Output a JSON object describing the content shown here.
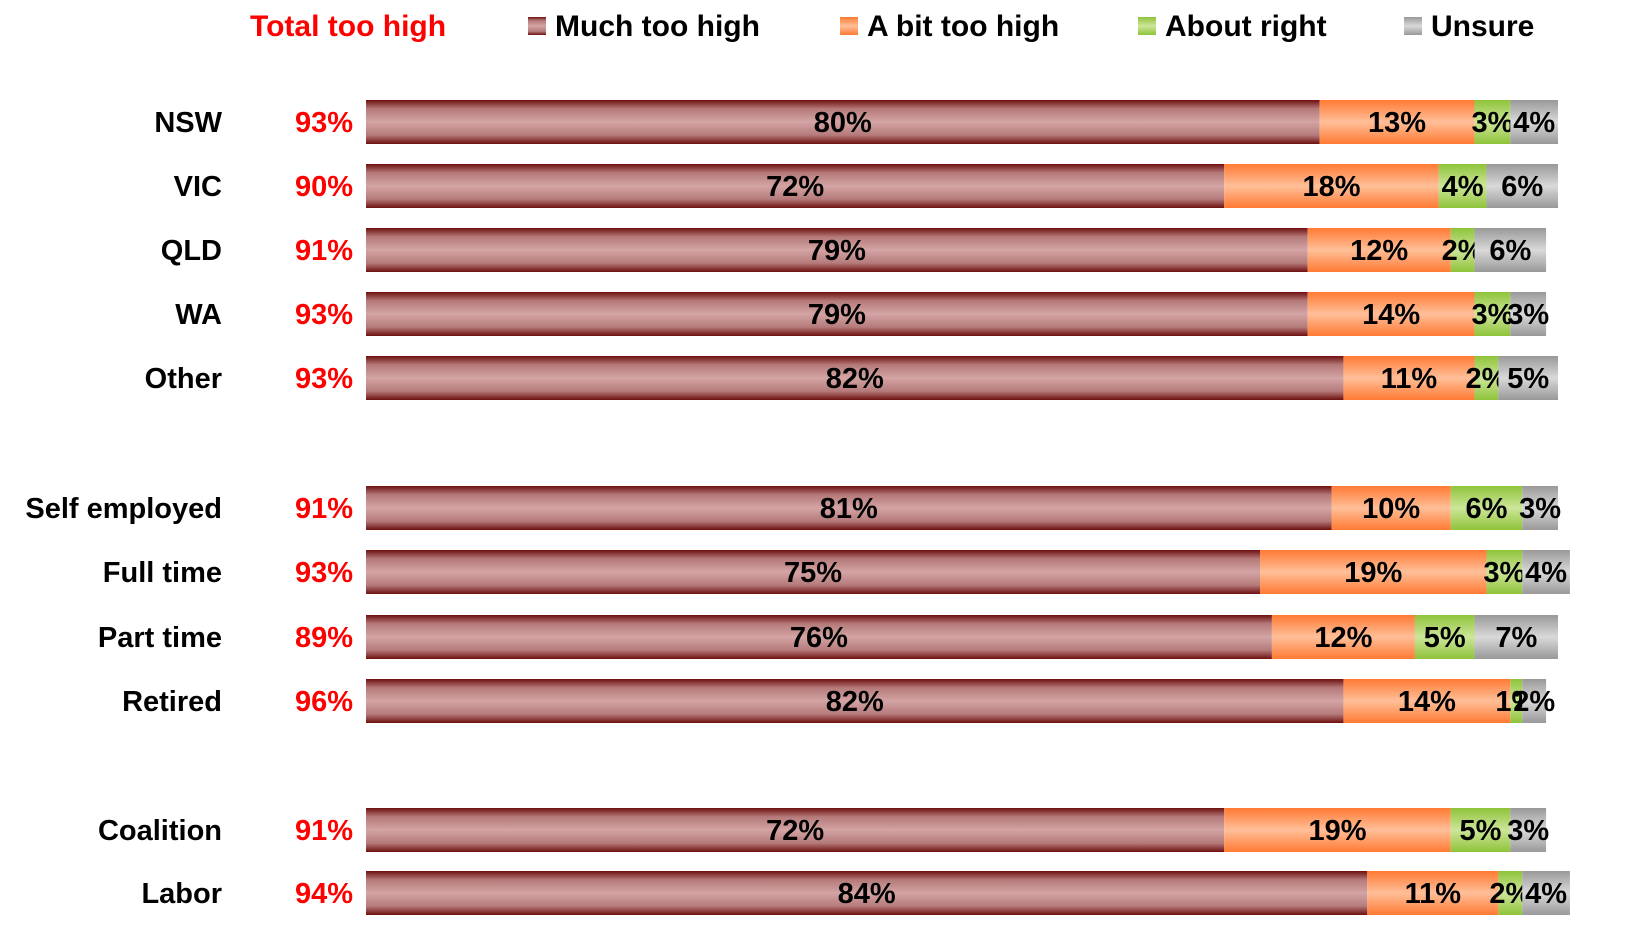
{
  "chart_data": {
    "type": "bar",
    "orientation": "horizontal",
    "stacked": true,
    "grid": false,
    "legend_position": "top",
    "total_label": "Total too high",
    "legend": [
      "Much too high",
      "A bit too high",
      "About right",
      "Unsure"
    ],
    "colors": {
      "total": "#ff0000",
      "much_too_high": "#8b1c1c",
      "a_bit_too_high": "#ff8040",
      "about_right": "#99cc33",
      "unsure": "#a6a6a6"
    },
    "groups": [
      [
        "NSW",
        "VIC",
        "QLD",
        "WA",
        "Other"
      ],
      [
        "Self employed",
        "Full time",
        "Part time",
        "Retired"
      ],
      [
        "Coalition",
        "Labor"
      ]
    ],
    "categories": [
      "NSW",
      "VIC",
      "QLD",
      "WA",
      "Other",
      "Self employed",
      "Full time",
      "Part time",
      "Retired",
      "Coalition",
      "Labor"
    ],
    "total_too_high": [
      "93%",
      "90%",
      "91%",
      "93%",
      "93%",
      "91%",
      "93%",
      "89%",
      "96%",
      "91%",
      "94%"
    ],
    "series": [
      {
        "name": "Much too high",
        "values": [
          80,
          72,
          79,
          79,
          82,
          81,
          75,
          76,
          82,
          72,
          84
        ]
      },
      {
        "name": "A bit too high",
        "values": [
          13,
          18,
          12,
          14,
          11,
          10,
          19,
          12,
          14,
          19,
          11
        ]
      },
      {
        "name": "About right",
        "values": [
          3,
          4,
          2,
          3,
          2,
          6,
          3,
          5,
          1,
          5,
          2
        ]
      },
      {
        "name": "Unsure",
        "values": [
          4,
          6,
          6,
          3,
          5,
          3,
          4,
          7,
          2,
          3,
          4
        ]
      }
    ],
    "xlim": [
      0,
      100
    ]
  }
}
